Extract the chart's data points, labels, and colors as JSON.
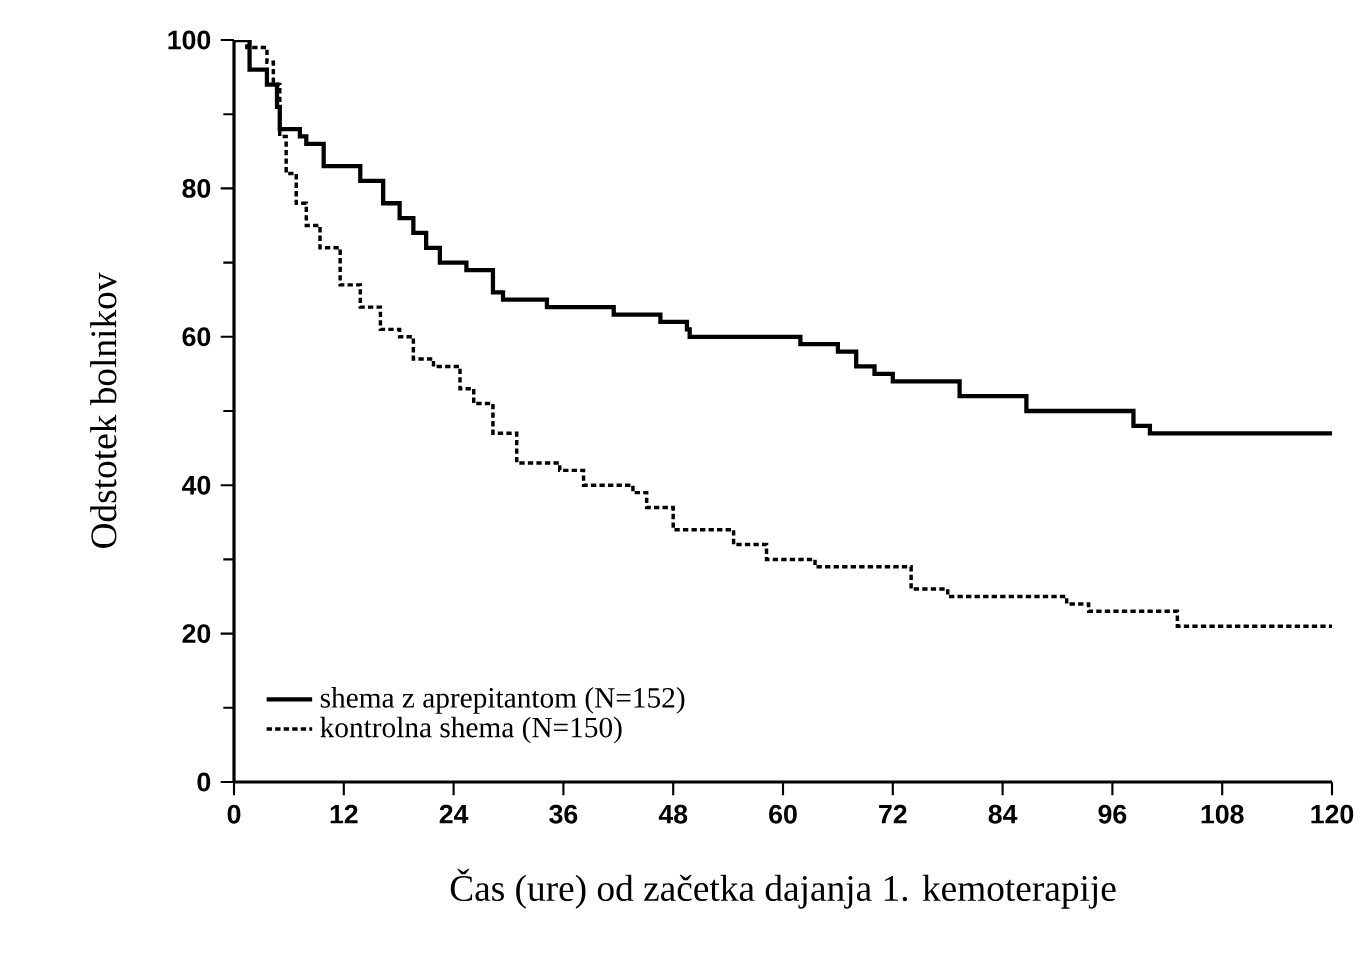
{
  "chart_data": {
    "type": "step",
    "xlabel": "Čas (ure) od začetka dajanja 1. kemoterapije",
    "ylabel": "Odstotek bolnikov",
    "xlim": [
      0,
      120
    ],
    "ylim": [
      0,
      100
    ],
    "xticks": [
      0,
      12,
      24,
      36,
      48,
      60,
      72,
      84,
      96,
      108,
      120
    ],
    "yticks": [
      {
        "value": 0,
        "label": "0"
      },
      {
        "value": 10,
        "label": null
      },
      {
        "value": 20,
        "label": "20"
      },
      {
        "value": 30,
        "label": null
      },
      {
        "value": 40,
        "label": "40"
      },
      {
        "value": 50,
        "label": null
      },
      {
        "value": 60,
        "label": "60"
      },
      {
        "value": 70,
        "label": null
      },
      {
        "value": 80,
        "label": "80"
      },
      {
        "value": 90,
        "label": null
      },
      {
        "value": 100,
        "label": "100"
      }
    ],
    "grid": false,
    "legend": "bottom left",
    "marker": "none",
    "series": [
      {
        "name": "shema z aprepitantom (N=152)",
        "color": "#000000",
        "line_style": "solid",
        "x": [
          0,
          1.7,
          3.6,
          4.7,
          5,
          7.2,
          7.9,
          9.8,
          12,
          13.8,
          16.3,
          18.1,
          19.6,
          21,
          22.5,
          25.4,
          28.3,
          29.4,
          34.2,
          34.9,
          41.5,
          46.2,
          46.6,
          49.5,
          49.8,
          55.3,
          61.9,
          64,
          66,
          68,
          70,
          72,
          79.3,
          86.6,
          94.6,
          98.3,
          100.1,
          120
        ],
        "values": [
          100,
          96,
          94,
          91,
          88,
          87,
          86,
          83,
          83,
          81,
          78,
          76,
          74,
          72,
          70,
          69,
          66,
          65,
          64,
          64,
          63,
          63,
          62,
          61,
          60,
          60,
          59,
          59,
          58,
          56,
          55,
          54,
          52,
          50,
          50,
          48,
          47,
          47
        ]
      },
      {
        "name": "kontrolna shema (N=150)",
        "color": "#000000",
        "line_style": "dotted",
        "x": [
          0,
          1.4,
          3.6,
          4.3,
          5,
          5.7,
          6.8,
          7.9,
          9.4,
          11.6,
          13.8,
          16,
          18.1,
          19.6,
          21.8,
          24.7,
          26.2,
          28.3,
          30.9,
          34.2,
          35.6,
          38.2,
          43.6,
          45.1,
          48,
          53.1,
          54.6,
          58.2,
          63.5,
          69.2,
          74,
          78,
          91,
          93.4,
          100.7,
          103.1,
          120
        ],
        "values": [
          100,
          99,
          97,
          94,
          87,
          82,
          78,
          75,
          72,
          67,
          64,
          61,
          60,
          57,
          56,
          53,
          51,
          47,
          43,
          43,
          42,
          40,
          39,
          37,
          34,
          34,
          32,
          30,
          29,
          29,
          26,
          25,
          24,
          23,
          23,
          21,
          21
        ]
      }
    ]
  }
}
